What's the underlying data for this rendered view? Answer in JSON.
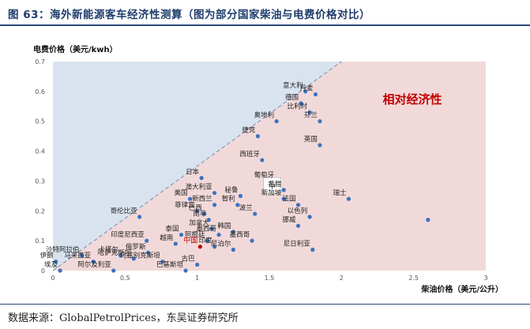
{
  "header": {
    "title": "图 63：海外新能源客车经济性测算（图为部分国家柴油与电费价格对比）"
  },
  "footer": {
    "source": "数据来源：GlobalPetrolPrices，东吴证券研究所"
  },
  "chart_data": {
    "type": "scatter",
    "xlabel": "柴油价格（美元/公升）",
    "ylabel": "电费价格（美元/kwh）",
    "xlim": [
      0,
      3
    ],
    "ylim": [
      0,
      0.7
    ],
    "xticks": [
      "0",
      "0.5",
      "1",
      "1.5",
      "2",
      "2.5",
      "3"
    ],
    "yticks": [
      "0",
      "0.1",
      "0.2",
      "0.3",
      "0.4",
      "0.5",
      "0.6",
      "0.7"
    ],
    "region_label": "相对经济性",
    "divider_line": {
      "from": [
        0,
        0
      ],
      "to": [
        2,
        0.7
      ]
    },
    "colors": {
      "upper_region": "#d9e3ef",
      "lower_region": "#f2d9d9",
      "point": "#3b73c0",
      "china_point": "#c00000",
      "region_text": "#c00000",
      "title": "#1f3d6b"
    },
    "zoom_box_text": "中",
    "points": [
      {
        "label": "伊朗",
        "x": 0.02,
        "y": 0.03
      },
      {
        "label": "埃及",
        "x": 0.05,
        "y": 0.0
      },
      {
        "label": "沙特阿拉伯",
        "x": 0.2,
        "y": 0.05
      },
      {
        "label": "马来西亚",
        "x": 0.28,
        "y": 0.03
      },
      {
        "label": "卡塔尔",
        "x": 0.47,
        "y": 0.05
      },
      {
        "label": "哥伦比亚",
        "x": 0.6,
        "y": 0.18
      },
      {
        "label": "阿尔及利亚",
        "x": 0.42,
        "y": 0.0
      },
      {
        "label": "哈萨克斯坦",
        "x": 0.56,
        "y": 0.04
      },
      {
        "label": "印度尼西亚",
        "x": 0.65,
        "y": 0.1
      },
      {
        "label": "俄罗斯",
        "x": 0.66,
        "y": 0.06
      },
      {
        "label": "乌兹别克斯坦",
        "x": 0.76,
        "y": 0.03
      },
      {
        "label": "越南",
        "x": 0.85,
        "y": 0.09
      },
      {
        "label": "巴基斯坦",
        "x": 0.92,
        "y": 0.0
      },
      {
        "label": "美国",
        "x": 0.95,
        "y": 0.24
      },
      {
        "label": "菲律宾",
        "x": 1.0,
        "y": 0.2
      },
      {
        "label": "日本",
        "x": 1.03,
        "y": 0.31
      },
      {
        "label": "泰国",
        "x": 0.89,
        "y": 0.12
      },
      {
        "label": "巴西",
        "x": 1.05,
        "y": 0.19
      },
      {
        "label": "澳大利亚",
        "x": 1.12,
        "y": 0.26
      },
      {
        "label": "新西兰",
        "x": 1.12,
        "y": 0.22
      },
      {
        "label": "南非",
        "x": 1.08,
        "y": 0.17
      },
      {
        "label": "加拿大",
        "x": 1.1,
        "y": 0.14
      },
      {
        "label": "阿根廷",
        "x": 1.07,
        "y": 0.1
      },
      {
        "label": "墨西哥",
        "x": 1.15,
        "y": 0.12
      },
      {
        "label": "印度",
        "x": 1.12,
        "y": 0.08
      },
      {
        "label": "古巴",
        "x": 1.0,
        "y": 0.02
      },
      {
        "label": "中国",
        "x": 1.02,
        "y": 0.08,
        "highlight": true
      },
      {
        "label": "秘鲁",
        "x": 1.3,
        "y": 0.25
      },
      {
        "label": "智利",
        "x": 1.28,
        "y": 0.22
      },
      {
        "label": "韩国",
        "x": 1.25,
        "y": 0.13
      },
      {
        "label": "尼泊尔",
        "x": 1.25,
        "y": 0.07
      },
      {
        "label": "波兰",
        "x": 1.4,
        "y": 0.19
      },
      {
        "label": "墨西哥",
        "x": 1.38,
        "y": 0.1
      },
      {
        "label": "葡萄牙",
        "x": 1.55,
        "y": 0.3
      },
      {
        "label": "西班牙",
        "x": 1.45,
        "y": 0.37
      },
      {
        "label": "希腊",
        "x": 1.6,
        "y": 0.27
      },
      {
        "label": "新加坡",
        "x": 1.6,
        "y": 0.24
      },
      {
        "label": "法国",
        "x": 1.7,
        "y": 0.22
      },
      {
        "label": "以色列",
        "x": 1.78,
        "y": 0.18
      },
      {
        "label": "挪威",
        "x": 1.7,
        "y": 0.15
      },
      {
        "label": "尼日利亚",
        "x": 1.8,
        "y": 0.07
      },
      {
        "label": "瑞士",
        "x": 2.05,
        "y": 0.24
      },
      {
        "label": "捷克",
        "x": 1.42,
        "y": 0.45
      },
      {
        "label": "奥地利",
        "x": 1.55,
        "y": 0.5
      },
      {
        "label": "德国",
        "x": 1.72,
        "y": 0.56
      },
      {
        "label": "意大利",
        "x": 1.75,
        "y": 0.6
      },
      {
        "label": "丹麦",
        "x": 1.82,
        "y": 0.59
      },
      {
        "label": "比利时",
        "x": 1.78,
        "y": 0.53
      },
      {
        "label": "芬兰",
        "x": 1.85,
        "y": 0.5
      },
      {
        "label": "英国",
        "x": 1.85,
        "y": 0.42
      },
      {
        "label": "",
        "x": 2.6,
        "y": 0.17
      }
    ]
  }
}
